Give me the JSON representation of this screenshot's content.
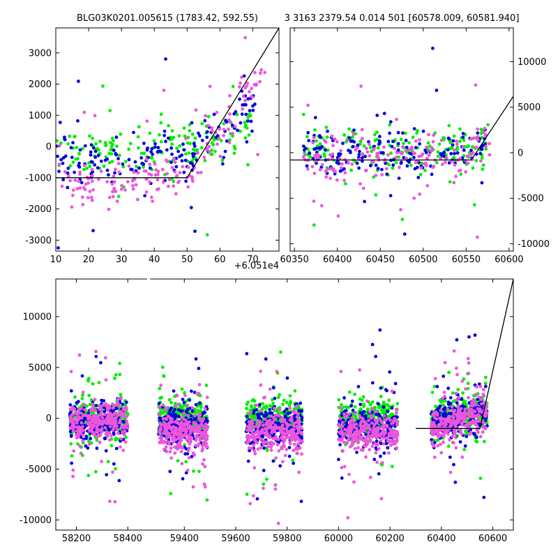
{
  "colors": {
    "green": "#00ee00",
    "blue": "#0000dd",
    "magenta": "#ee55dd",
    "grey": "#888888",
    "model": "#000000"
  },
  "chart_data": [
    {
      "id": "top-left",
      "type": "scatter",
      "title": "BLG03K0201.005615 (1783.42, 592.55)",
      "offset_label": "+6.051e4",
      "xlim": [
        10,
        78
      ],
      "ylim": [
        -3350,
        3800
      ],
      "xticks": [
        "10",
        "20",
        "30",
        "40",
        "50",
        "60",
        "70"
      ],
      "xtick_values": [
        10,
        20,
        30,
        40,
        50,
        60,
        70
      ],
      "yticks": [
        "-3000",
        "-2000",
        "-1000",
        "0",
        "1000",
        "2000",
        "3000"
      ],
      "ytick_values": [
        -3000,
        -2000,
        -1000,
        0,
        1000,
        2000,
        3000
      ],
      "y_axis_side": "left",
      "model_line": {
        "x": [
          10,
          50,
          78
        ],
        "y": [
          -1000,
          -1000,
          3800
        ]
      },
      "series": [
        {
          "color": "green",
          "segments": [
            {
              "x0": 10,
              "x1": 70,
              "base": [
                -200,
                -200,
                0,
                100,
                900
              ],
              "knots": [
                10,
                30,
                50,
                60,
                70
              ]
            }
          ]
        },
        {
          "color": "blue",
          "segments": [
            {
              "x0": 10,
              "x1": 72,
              "base": [
                -400,
                -400,
                -300,
                300,
                1500
              ],
              "knots": [
                10,
                30,
                50,
                60,
                72
              ]
            }
          ]
        },
        {
          "color": "magenta",
          "segments": [
            {
              "x0": 10,
              "x1": 74,
              "base": [
                -900,
                -1300,
                -800,
                300,
                2500
              ],
              "knots": [
                10,
                25,
                50,
                60,
                74
              ]
            }
          ]
        }
      ]
    },
    {
      "id": "top-right",
      "type": "scatter",
      "title": "3 3163 2379.54 0.014 501 [60578.009, 60581.940]",
      "xlim": [
        60345,
        60605
      ],
      "ylim": [
        -10800,
        13700
      ],
      "xticks": [
        "60350",
        "60400",
        "60450",
        "60500",
        "60550",
        "60600"
      ],
      "xtick_values": [
        60350,
        60400,
        60450,
        60500,
        60550,
        60600
      ],
      "yticks": [
        "-10000",
        "-5000",
        "0",
        "5000",
        "10000"
      ],
      "ytick_values": [
        -10000,
        -5000,
        0,
        5000,
        10000
      ],
      "y_axis_side": "right",
      "model_line": {
        "x": [
          60345,
          60556,
          60605
        ],
        "y": [
          -800,
          -800,
          6200
        ]
      },
      "series": [
        {
          "color": "green",
          "segments": [
            {
              "x0": 60360,
              "x1": 60578,
              "base": [
                300,
                300,
                500
              ],
              "knots": [
                60360,
                60540,
                60578
              ]
            }
          ]
        },
        {
          "color": "blue",
          "segments": [
            {
              "x0": 60360,
              "x1": 60578,
              "base": [
                0,
                0,
                1500
              ],
              "knots": [
                60360,
                60540,
                60578
              ]
            }
          ]
        },
        {
          "color": "magenta",
          "segments": [
            {
              "x0": 60360,
              "x1": 60578,
              "base": [
                -700,
                -700,
                1800
              ],
              "knots": [
                60360,
                60545,
                60578
              ]
            }
          ]
        }
      ]
    },
    {
      "id": "bottom",
      "type": "scatter",
      "title": "",
      "xlim": [
        58120,
        60680
      ],
      "ylim": [
        -11000,
        13700
      ],
      "xticks": [
        "58200",
        "58400",
        "59400",
        "59600",
        "59800",
        "60000",
        "60200",
        "60400",
        "60600"
      ],
      "xtick_values": [
        58200,
        58400,
        59400,
        59600,
        59800,
        60000,
        60200,
        60400,
        60600
      ],
      "yticks": [
        "-10000",
        "-5000",
        "0",
        "5000",
        "10000"
      ],
      "ytick_values": [
        -10000,
        -5000,
        0,
        5000,
        10000
      ],
      "y_axis_side": "left",
      "x_break": {
        "from": 58470,
        "to": 59250
      },
      "model_line": {
        "x": [
          60300,
          60550,
          60680
        ],
        "y": [
          -1000,
          -1000,
          13700
        ]
      },
      "series": [
        {
          "color": "green",
          "segments": [
            {
              "x0": 58175,
              "x1": 58400,
              "base": [
                0
              ],
              "knots": [
                58175
              ]
            },
            {
              "x0": 59300,
              "x1": 59490,
              "base": [
                0
              ],
              "knots": [
                59300
              ]
            },
            {
              "x0": 59640,
              "x1": 59860,
              "base": [
                0
              ],
              "knots": [
                59640
              ]
            },
            {
              "x0": 60000,
              "x1": 60230,
              "base": [
                0
              ],
              "knots": [
                60000
              ]
            },
            {
              "x0": 60360,
              "x1": 60578,
              "base": [
                0,
                500
              ],
              "knots": [
                60360,
                60578
              ]
            }
          ]
        },
        {
          "color": "blue",
          "segments": [
            {
              "x0": 58175,
              "x1": 58400,
              "base": [
                -300
              ],
              "knots": [
                58175
              ]
            },
            {
              "x0": 59300,
              "x1": 59490,
              "base": [
                -800
              ],
              "knots": [
                59300
              ]
            },
            {
              "x0": 59640,
              "x1": 59860,
              "base": [
                -900
              ],
              "knots": [
                59640
              ]
            },
            {
              "x0": 60000,
              "x1": 60230,
              "base": [
                -900
              ],
              "knots": [
                60000
              ]
            },
            {
              "x0": 60360,
              "x1": 60578,
              "base": [
                -600,
                800
              ],
              "knots": [
                60360,
                60578
              ]
            }
          ]
        },
        {
          "color": "magenta",
          "segments": [
            {
              "x0": 58175,
              "x1": 58400,
              "base": [
                -200
              ],
              "knots": [
                58175
              ]
            },
            {
              "x0": 59300,
              "x1": 59490,
              "base": [
                -1400
              ],
              "knots": [
                59300
              ]
            },
            {
              "x0": 59640,
              "x1": 59860,
              "base": [
                -1400
              ],
              "knots": [
                59640
              ]
            },
            {
              "x0": 60000,
              "x1": 60230,
              "base": [
                -1400
              ],
              "knots": [
                60000
              ]
            },
            {
              "x0": 60360,
              "x1": 60578,
              "base": [
                -1100,
                500
              ],
              "knots": [
                60360,
                60578
              ]
            }
          ]
        }
      ]
    }
  ]
}
